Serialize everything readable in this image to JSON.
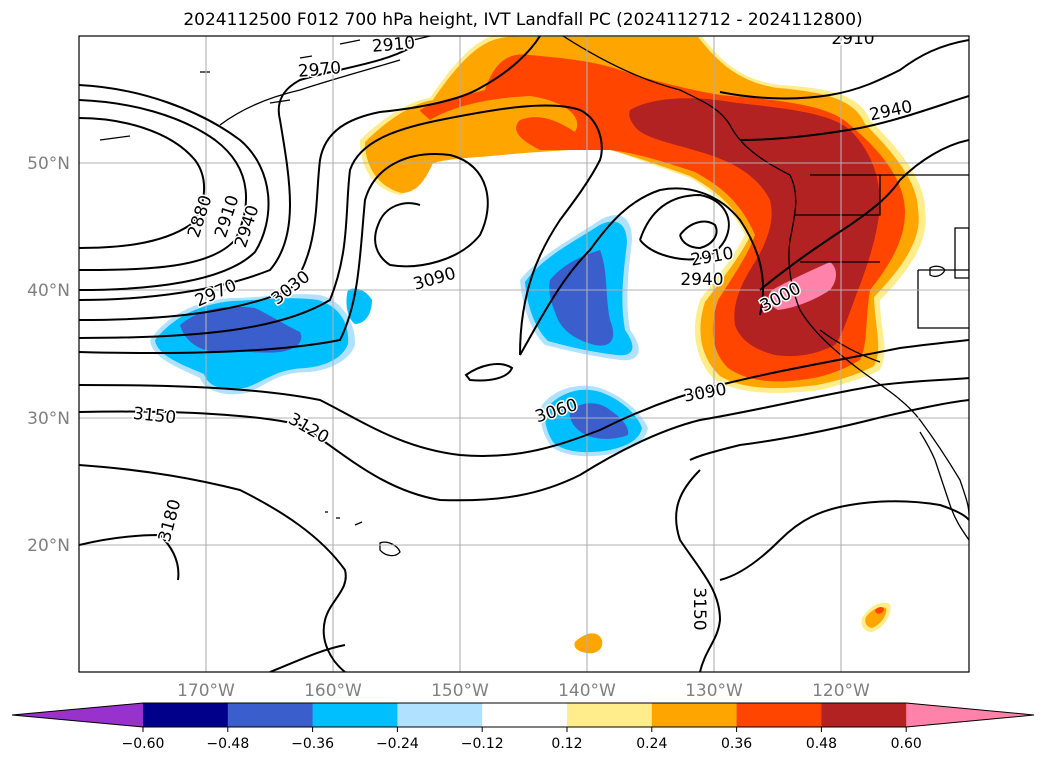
{
  "title": "2024112500 F012 700 hPa height, IVT Landfall PC (2024112712 - 2024112800)",
  "map": {
    "lon_range": [
      -180,
      -110
    ],
    "lat_range": [
      10,
      60
    ],
    "longitude_labels": [
      "170°W",
      "160°W",
      "150°W",
      "140°W",
      "130°W",
      "120°W"
    ],
    "latitude_labels": [
      "50°N",
      "40°N",
      "30°N",
      "20°N"
    ],
    "gridlines": true
  },
  "contour_labels": [
    {
      "text": "2910"
    },
    {
      "text": "2910"
    },
    {
      "text": "2970"
    },
    {
      "text": "2940"
    },
    {
      "text": "2880"
    },
    {
      "text": "2910"
    },
    {
      "text": "2940"
    },
    {
      "text": "2970"
    },
    {
      "text": "3030"
    },
    {
      "text": "3090"
    },
    {
      "text": "2910"
    },
    {
      "text": "2940"
    },
    {
      "text": "3000"
    },
    {
      "text": "3090"
    },
    {
      "text": "3060"
    },
    {
      "text": "3150"
    },
    {
      "text": "3120"
    },
    {
      "text": "3180"
    },
    {
      "text": "3150"
    }
  ],
  "colorbar": {
    "colors": [
      "#9932cc",
      "#00008b",
      "#3a5fcd",
      "#00bfff",
      "#b0e2ff",
      "#ffffff",
      "#ffec8b",
      "#ffa500",
      "#ff4500",
      "#b22222",
      "#ff82ab"
    ],
    "tick_labels": [
      "−0.60",
      "−0.48",
      "−0.36",
      "−0.24",
      "−0.12",
      "0.12",
      "0.24",
      "0.36",
      "0.48",
      "0.60"
    ]
  }
}
